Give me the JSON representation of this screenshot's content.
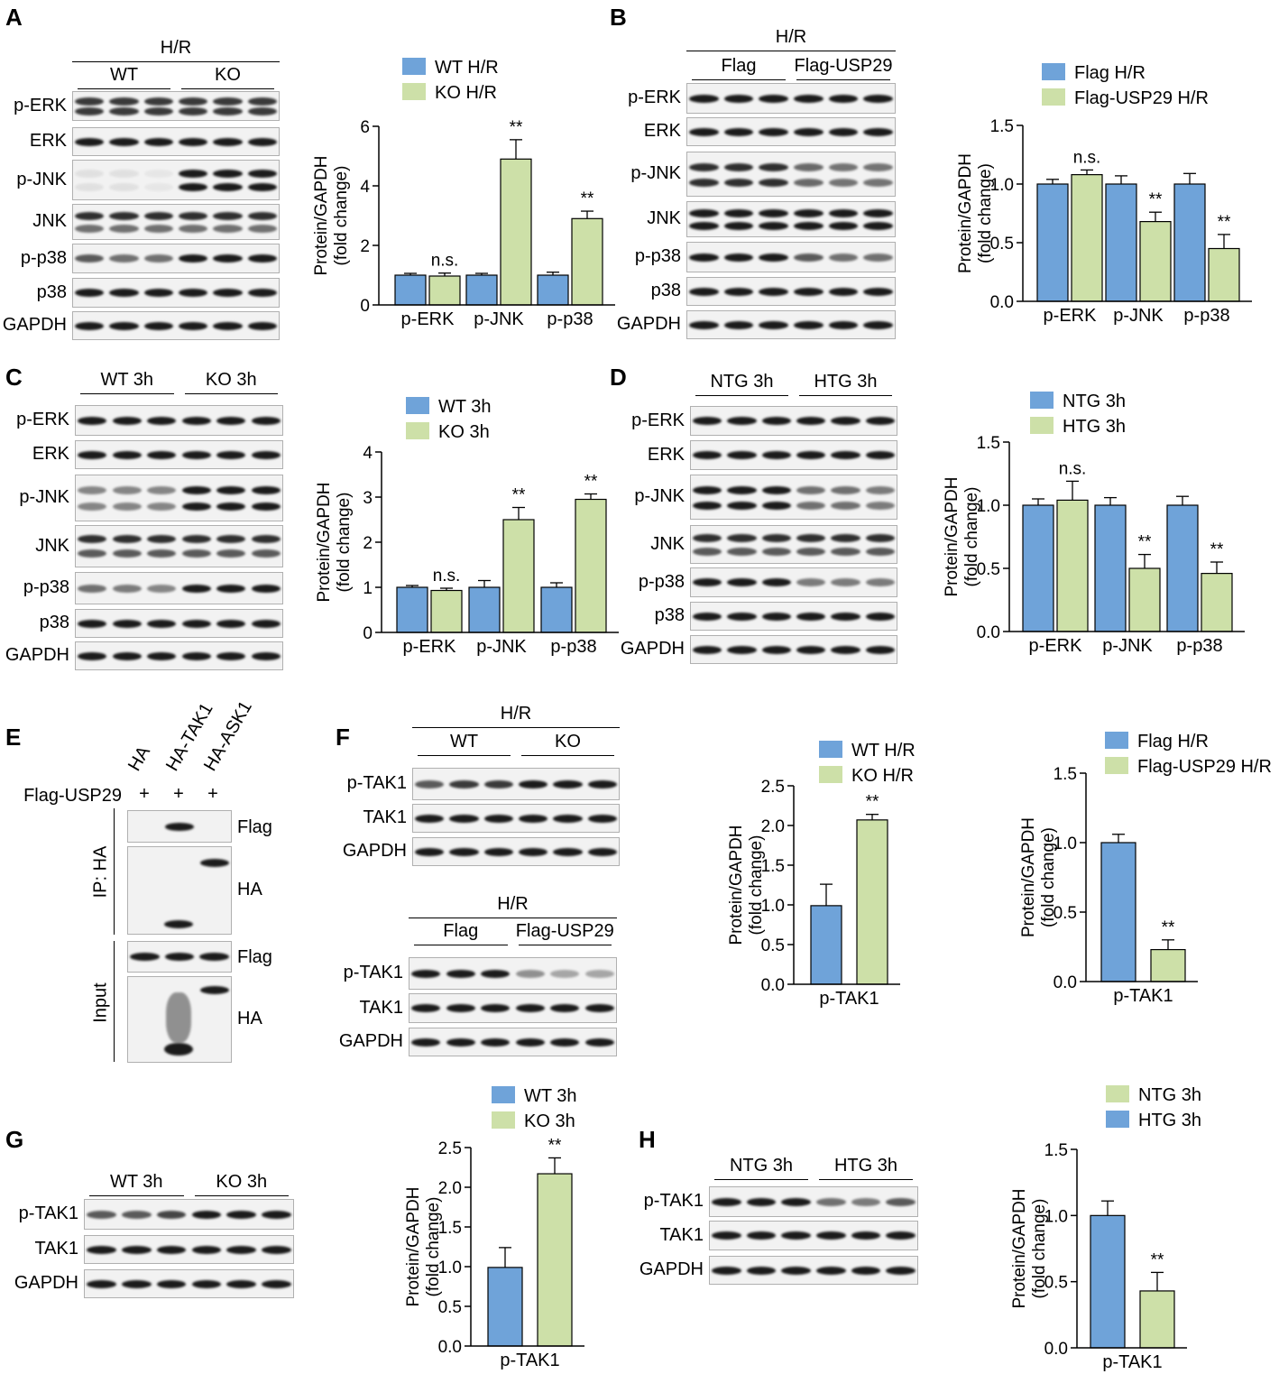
{
  "colors": {
    "blue": "#6fa3d9",
    "green": "#cde0a8"
  },
  "panels": {
    "A": {
      "letter": "A",
      "group": "H/R",
      "conditions": [
        "WT",
        "KO"
      ],
      "proteins": [
        "p-ERK",
        "ERK",
        "p-JNK",
        "JNK",
        "p-p38",
        "p38",
        "GAPDH"
      ]
    },
    "B": {
      "letter": "B",
      "group": "H/R",
      "conditions": [
        "Flag",
        "Flag-USP29"
      ],
      "proteins": [
        "p-ERK",
        "ERK",
        "p-JNK",
        "JNK",
        "p-p38",
        "p38",
        "GAPDH"
      ]
    },
    "C": {
      "letter": "C",
      "conditions": [
        "WT 3h",
        "KO 3h"
      ],
      "proteins": [
        "p-ERK",
        "ERK",
        "p-JNK",
        "JNK",
        "p-p38",
        "p38",
        "GAPDH"
      ]
    },
    "D": {
      "letter": "D",
      "conditions": [
        "NTG 3h",
        "HTG 3h"
      ],
      "proteins": [
        "p-ERK",
        "ERK",
        "p-JNK",
        "JNK",
        "p-p38",
        "p38",
        "GAPDH"
      ]
    },
    "E": {
      "letter": "E",
      "lanes": [
        "HA",
        "HA-TAK1",
        "HA-ASK1"
      ],
      "flag_row": "Flag-USP29",
      "plus": [
        "+",
        "+",
        "+"
      ],
      "ip": "IP: HA",
      "input": "Input",
      "right_labels": [
        "Flag",
        "HA",
        "Flag",
        "HA"
      ]
    },
    "F": {
      "letter": "F",
      "top": {
        "group": "H/R",
        "conditions": [
          "WT",
          "KO"
        ],
        "proteins": [
          "p-TAK1",
          "TAK1",
          "GAPDH"
        ]
      },
      "bottom": {
        "group": "H/R",
        "conditions": [
          "Flag",
          "Flag-USP29"
        ],
        "proteins": [
          "p-TAK1",
          "TAK1",
          "GAPDH"
        ]
      }
    },
    "G": {
      "letter": "G",
      "conditions": [
        "WT 3h",
        "KO 3h"
      ],
      "proteins": [
        "p-TAK1",
        "TAK1",
        "GAPDH"
      ]
    },
    "H": {
      "letter": "H",
      "conditions": [
        "NTG 3h",
        "HTG 3h"
      ],
      "proteins": [
        "p-TAK1",
        "TAK1",
        "GAPDH"
      ]
    }
  },
  "chart_data": [
    {
      "id": "A",
      "type": "bar",
      "ylabel": "Protein/GAPDH (fold change)",
      "categories": [
        "p-ERK",
        "p-JNK",
        "p-p38"
      ],
      "ylim": [
        0,
        6
      ],
      "yticks": [
        0,
        2,
        4,
        6
      ],
      "yticklabels": [
        "0",
        "2",
        "4",
        "6"
      ],
      "series": [
        {
          "name": "WT H/R",
          "values": [
            1.0,
            1.0,
            1.0
          ],
          "err": [
            0.06,
            0.06,
            0.1
          ],
          "color": "blue"
        },
        {
          "name": "KO H/R",
          "values": [
            0.97,
            4.9,
            2.9
          ],
          "err": [
            0.1,
            0.65,
            0.25
          ],
          "color": "green"
        }
      ],
      "annotations": [
        "n.s.",
        "**",
        "**"
      ]
    },
    {
      "id": "B",
      "type": "bar",
      "ylabel": "Protein/GAPDH (fold change)",
      "categories": [
        "p-ERK",
        "p-JNK",
        "p-p38"
      ],
      "ylim": [
        0,
        1.5
      ],
      "yticks": [
        0,
        0.5,
        1.0,
        1.5
      ],
      "yticklabels": [
        "0.0",
        "0.5",
        "1.0",
        "1.5"
      ],
      "series": [
        {
          "name": "Flag H/R",
          "values": [
            1.0,
            1.0,
            1.0
          ],
          "err": [
            0.04,
            0.07,
            0.09
          ],
          "color": "blue"
        },
        {
          "name": "Flag-USP29 H/R",
          "values": [
            1.08,
            0.68,
            0.45
          ],
          "err": [
            0.04,
            0.08,
            0.12
          ],
          "color": "green"
        }
      ],
      "annotations": [
        "n.s.",
        "**",
        "**"
      ]
    },
    {
      "id": "C",
      "type": "bar",
      "ylabel": "Protein/GAPDH (fold change)",
      "categories": [
        "p-ERK",
        "p-JNK",
        "p-p38"
      ],
      "ylim": [
        0,
        4
      ],
      "yticks": [
        0,
        1,
        2,
        3,
        4
      ],
      "yticklabels": [
        "0",
        "1",
        "2",
        "3",
        "4"
      ],
      "series": [
        {
          "name": "WT 3h",
          "values": [
            1.0,
            1.0,
            1.0
          ],
          "err": [
            0.04,
            0.15,
            0.1
          ],
          "color": "blue"
        },
        {
          "name": "KO 3h",
          "values": [
            0.93,
            2.5,
            2.95
          ],
          "err": [
            0.05,
            0.27,
            0.12
          ],
          "color": "green"
        }
      ],
      "annotations": [
        "n.s.",
        "**",
        "**"
      ]
    },
    {
      "id": "D",
      "type": "bar",
      "ylabel": "Protein/GAPDH (fold change)",
      "categories": [
        "p-ERK",
        "p-JNK",
        "p-p38"
      ],
      "ylim": [
        0,
        1.5
      ],
      "yticks": [
        0,
        0.5,
        1.0,
        1.5
      ],
      "yticklabels": [
        "0.0",
        "0.5",
        "1.0",
        "1.5"
      ],
      "series": [
        {
          "name": "NTG 3h",
          "values": [
            1.0,
            1.0,
            1.0
          ],
          "err": [
            0.05,
            0.06,
            0.07
          ],
          "color": "blue"
        },
        {
          "name": "HTG 3h",
          "values": [
            1.04,
            0.5,
            0.46
          ],
          "err": [
            0.15,
            0.11,
            0.09
          ],
          "color": "green"
        }
      ],
      "annotations": [
        "n.s.",
        "**",
        "**"
      ]
    },
    {
      "id": "F1",
      "type": "bar",
      "ylabel": "Protein/GAPDH (fold change)",
      "categories": [
        "p-TAK1"
      ],
      "ylim": [
        0,
        2.5
      ],
      "yticks": [
        0,
        0.5,
        1.0,
        1.5,
        2.0,
        2.5
      ],
      "yticklabels": [
        "0.0",
        "0.5",
        "1.0",
        "1.5",
        "2.0",
        "2.5"
      ],
      "series": [
        {
          "name": "WT H/R",
          "values": [
            0.99
          ],
          "err": [
            0.27
          ],
          "color": "blue"
        },
        {
          "name": "KO H/R",
          "values": [
            2.07
          ],
          "err": [
            0.07
          ],
          "color": "green"
        }
      ],
      "annotations": [
        "**"
      ]
    },
    {
      "id": "F2",
      "type": "bar",
      "ylabel": "Protein/GAPDH (fold change)",
      "categories": [
        "p-TAK1"
      ],
      "ylim": [
        0,
        1.5
      ],
      "yticks": [
        0,
        0.5,
        1.0,
        1.5
      ],
      "yticklabels": [
        "0.0",
        "0.5",
        "1.0",
        "1.5"
      ],
      "series": [
        {
          "name": "Flag H/R",
          "values": [
            1.0
          ],
          "err": [
            0.06
          ],
          "color": "blue"
        },
        {
          "name": "Flag-USP29 H/R",
          "values": [
            0.23
          ],
          "err": [
            0.07
          ],
          "color": "green"
        }
      ],
      "annotations": [
        "**"
      ]
    },
    {
      "id": "G",
      "type": "bar",
      "ylabel": "Protein/GAPDH (fold change)",
      "categories": [
        "p-TAK1"
      ],
      "ylim": [
        0,
        2.5
      ],
      "yticks": [
        0,
        0.5,
        1.0,
        1.5,
        2.0,
        2.5
      ],
      "yticklabels": [
        "0.0",
        "0.5",
        "1.0",
        "1.5",
        "2.0",
        "2.5"
      ],
      "series": [
        {
          "name": "WT 3h",
          "values": [
            0.99
          ],
          "err": [
            0.25
          ],
          "color": "blue"
        },
        {
          "name": "KO 3h",
          "values": [
            2.17
          ],
          "err": [
            0.2
          ],
          "color": "green"
        }
      ],
      "annotations": [
        "**"
      ]
    },
    {
      "id": "H",
      "type": "bar",
      "ylabel": "Protein/GAPDH (fold change)",
      "categories": [
        "p-TAK1"
      ],
      "ylim": [
        0,
        1.5
      ],
      "yticks": [
        0,
        0.5,
        1.0,
        1.5
      ],
      "yticklabels": [
        "0.0",
        "0.5",
        "1.0",
        "1.5"
      ],
      "series": [
        {
          "name": "NTG 3h",
          "values": [
            1.0
          ],
          "err": [
            0.11
          ],
          "color": "green"
        },
        {
          "name": "HTG 3h",
          "values": [
            0.43
          ],
          "err": [
            0.14
          ],
          "color": "blue"
        }
      ],
      "legend_colors": [
        "green",
        "blue"
      ],
      "bar_colors": [
        "blue",
        "green"
      ],
      "annotations": [
        "**"
      ]
    }
  ]
}
